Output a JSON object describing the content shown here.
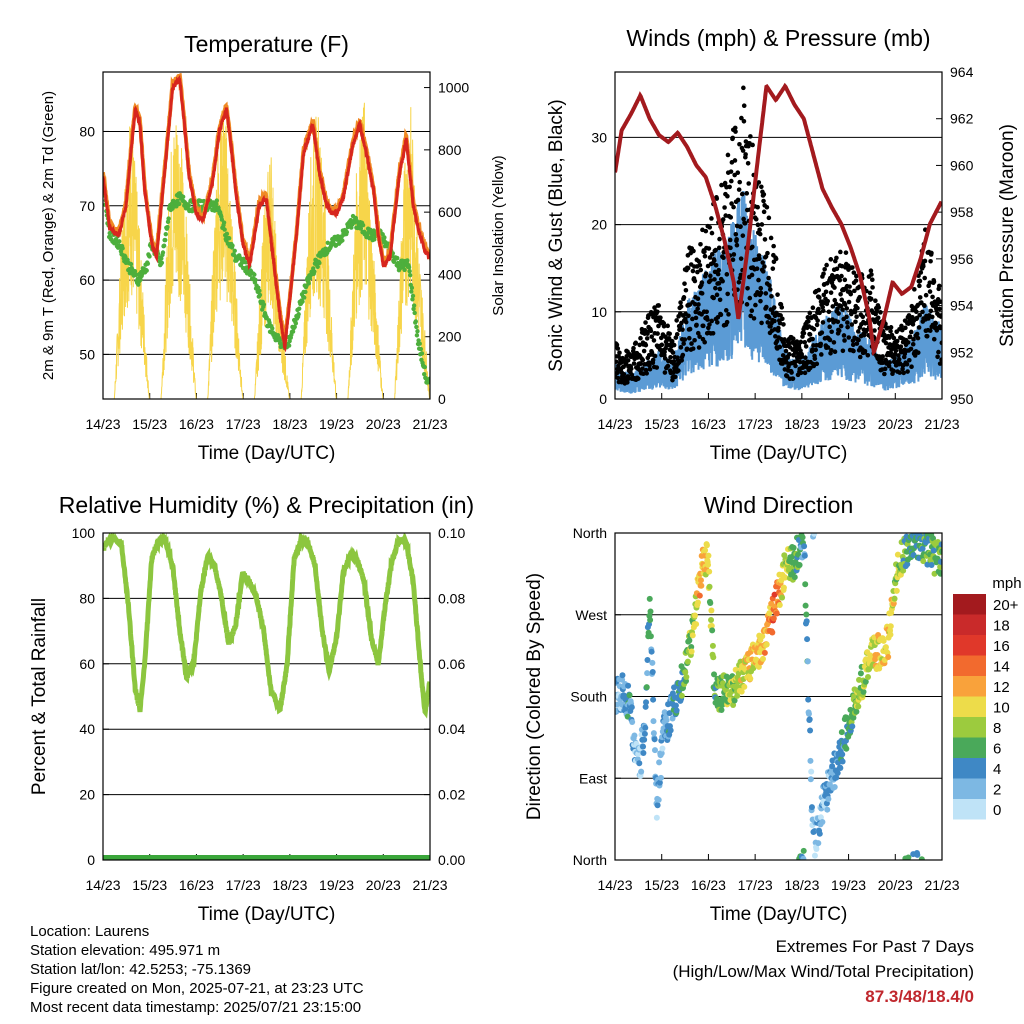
{
  "colors": {
    "temp_red": "#d7261e",
    "temp_orange": "#f08a24",
    "dewpoint_green": "#4daf3c",
    "solar_yellow": "#f7d54a",
    "wind_blue": "#5b9bd5",
    "gust_black": "#000000",
    "pressure_maroon": "#a31a1e",
    "rh_green": "#8cc63f",
    "precip_green": "#3aa63a",
    "extremes_red": "#c0272d"
  },
  "x_ticks": [
    "14/23",
    "15/23",
    "16/23",
    "17/23",
    "18/23",
    "19/23",
    "20/23",
    "21/23"
  ],
  "x_label": "Time (Day/UTC)",
  "panels": {
    "temperature": {
      "title": "Temperature (F)",
      "ylabel_left": "2m & 9m T (Red, Orange) & 2m Td (Green)",
      "ylabel_right": "Solar Insolation (Yellow)",
      "left_ticks": [
        "50",
        "60",
        "70",
        "80"
      ],
      "right_ticks": [
        "0",
        "200",
        "400",
        "600",
        "800",
        "1000"
      ]
    },
    "winds": {
      "title": "Winds (mph) & Pressure (mb)",
      "ylabel_left": "Sonic Wind & Gust (Blue, Black)",
      "ylabel_right": "Station Pressure (Maroon)",
      "left_ticks": [
        "0",
        "10",
        "20",
        "30"
      ],
      "right_ticks": [
        "950",
        "952",
        "954",
        "956",
        "958",
        "960",
        "962",
        "964"
      ]
    },
    "humidity": {
      "title": "Relative Humidity (%) & Precipitation (in)",
      "ylabel_left": "Percent & Total Rainfall",
      "left_ticks": [
        "0",
        "20",
        "40",
        "60",
        "80",
        "100"
      ],
      "right_ticks": [
        "0.00",
        "0.02",
        "0.04",
        "0.06",
        "0.08",
        "0.10"
      ]
    },
    "direction": {
      "title": "Wind Direction",
      "ylabel_left": "Direction (Colored By Speed)",
      "left_ticks": [
        "North",
        "East",
        "South",
        "West",
        "North"
      ],
      "legend_title": "mph",
      "legend_labels": [
        "20+",
        "18",
        "16",
        "14",
        "12",
        "10",
        "8",
        "6",
        "4",
        "2",
        "0"
      ],
      "legend_colors": [
        "#a31a1e",
        "#c92a2a",
        "#e0382a",
        "#f26a2e",
        "#f9a23b",
        "#eddc4a",
        "#9ccb3e",
        "#4aa95a",
        "#3f88c5",
        "#7db8e3",
        "#bfe3f7"
      ]
    }
  },
  "chart_data": [
    {
      "type": "line",
      "title": "Temperature (F)",
      "xlabel": "Time (Day/UTC)",
      "ylabel": "2m & 9m T (Red, Orange) & 2m Td (Green)",
      "ylabel_right": "Solar Insolation (Yellow)",
      "ylim": [
        44,
        88
      ],
      "ylim_right": [
        0,
        1050
      ],
      "x_range_days": [
        14.958,
        21.958
      ],
      "series": [
        {
          "name": "2m & 9m T",
          "color": "#d7261e",
          "x": [
            14.96,
            15.1,
            15.3,
            15.45,
            15.6,
            15.65,
            15.75,
            15.85,
            16.0,
            16.1,
            16.3,
            16.45,
            16.6,
            16.7,
            16.8,
            16.95,
            17.1,
            17.3,
            17.45,
            17.6,
            17.7,
            17.8,
            17.95,
            18.1,
            18.3,
            18.45,
            18.6,
            18.75,
            18.85,
            18.95,
            19.1,
            19.25,
            19.45,
            19.6,
            19.75,
            19.85,
            19.96,
            20.1,
            20.3,
            20.45,
            20.6,
            20.75,
            20.85,
            20.96,
            21.1,
            21.3,
            21.45,
            21.6,
            21.7,
            21.85,
            21.96
          ],
          "y": [
            74,
            67,
            66,
            70,
            80,
            83,
            81,
            72,
            65,
            63,
            76,
            86,
            87,
            81,
            74,
            69,
            68,
            73,
            80,
            83,
            78,
            72,
            65,
            62,
            70,
            71,
            63,
            55,
            51,
            57,
            66,
            77,
            81,
            74,
            70,
            69,
            69,
            71,
            78,
            81,
            77,
            72,
            66,
            62,
            63,
            74,
            79,
            70,
            67,
            64,
            63
          ]
        },
        {
          "name": "2m Td",
          "color": "#4daf3c",
          "x": [
            14.96,
            15.1,
            15.3,
            15.5,
            15.7,
            15.9,
            16.0,
            16.2,
            16.4,
            16.6,
            16.8,
            17.0,
            17.2,
            17.4,
            17.6,
            17.8,
            18.0,
            18.2,
            18.5,
            18.7,
            18.9,
            19.1,
            19.3,
            19.5,
            19.7,
            19.9,
            20.1,
            20.3,
            20.5,
            20.7,
            20.9,
            21.1,
            21.3,
            21.5,
            21.7,
            21.9
          ],
          "y": [
            73,
            66,
            65,
            62,
            60,
            62,
            65,
            62,
            70,
            71,
            70,
            70,
            70,
            70,
            66,
            63,
            62,
            60,
            54,
            52,
            51,
            55,
            59,
            62,
            64,
            65,
            66,
            68,
            67,
            66,
            66,
            64,
            62,
            62,
            52,
            46
          ]
        },
        {
          "name": "Solar Insolation",
          "color": "#f7d54a",
          "axis": "right",
          "x": [
            14.96,
            15.2,
            15.4,
            15.55,
            15.7,
            15.95,
            16.2,
            16.4,
            16.55,
            16.7,
            16.95,
            17.2,
            17.4,
            17.55,
            17.7,
            17.95,
            18.2,
            18.4,
            18.55,
            18.7,
            18.95,
            19.2,
            19.4,
            19.55,
            19.7,
            19.95,
            20.2,
            20.4,
            20.55,
            20.7,
            20.95,
            21.2,
            21.4,
            21.55,
            21.7,
            21.95
          ],
          "y": [
            0,
            0,
            700,
            950,
            650,
            0,
            0,
            800,
            1000,
            700,
            0,
            0,
            820,
            1000,
            650,
            0,
            0,
            600,
            850,
            400,
            0,
            0,
            780,
            950,
            700,
            0,
            0,
            800,
            980,
            600,
            0,
            0,
            750,
            950,
            550,
            0
          ]
        }
      ]
    },
    {
      "type": "line",
      "title": "Winds (mph) & Pressure (mb)",
      "xlabel": "Time (Day/UTC)",
      "ylabel": "Sonic Wind & Gust (Blue, Black)",
      "ylabel_right": "Station Pressure (Maroon)",
      "ylim": [
        0,
        37.5
      ],
      "ylim_right": [
        950,
        964
      ],
      "x_range_days": [
        14.958,
        21.958
      ],
      "series": [
        {
          "name": "Sonic Wind",
          "color": "#5b9bd5",
          "x": [
            14.96,
            15.3,
            15.6,
            15.9,
            16.2,
            16.5,
            16.8,
            17.1,
            17.4,
            17.7,
            18.0,
            18.3,
            18.6,
            18.9,
            19.2,
            19.5,
            19.8,
            20.1,
            20.4,
            20.7,
            21.0,
            21.3,
            21.6,
            21.96
          ],
          "y": [
            3,
            2,
            3,
            4,
            3,
            8,
            10,
            12,
            14,
            18,
            13,
            10,
            4,
            3,
            5,
            7,
            8,
            6,
            5,
            3,
            4,
            5,
            8,
            6
          ]
        },
        {
          "name": "Gust",
          "color": "#000000",
          "x": [
            14.96,
            15.3,
            15.6,
            15.9,
            16.2,
            16.5,
            16.8,
            17.1,
            17.4,
            17.7,
            18.0,
            18.3,
            18.6,
            18.9,
            19.2,
            19.5,
            19.8,
            20.1,
            20.4,
            20.7,
            21.0,
            21.3,
            21.6,
            21.96
          ],
          "y": [
            5,
            4,
            7,
            9,
            5,
            13,
            15,
            18,
            22,
            28,
            20,
            16,
            6,
            5,
            9,
            12,
            14,
            11,
            12,
            7,
            6,
            8,
            16,
            9
          ]
        },
        {
          "name": "Station Pressure",
          "color": "#a31a1e",
          "axis": "right",
          "x": [
            14.96,
            15.1,
            15.3,
            15.5,
            15.7,
            15.9,
            16.1,
            16.3,
            16.5,
            16.7,
            16.9,
            17.1,
            17.3,
            17.5,
            17.6,
            17.8,
            18.0,
            18.2,
            18.4,
            18.6,
            18.8,
            19.0,
            19.2,
            19.4,
            19.6,
            19.8,
            20.0,
            20.2,
            20.4,
            20.5,
            20.7,
            20.9,
            21.1,
            21.3,
            21.5,
            21.7,
            21.96
          ],
          "y": [
            959.7,
            961.5,
            962.2,
            963,
            962,
            961.3,
            961,
            961.4,
            960.8,
            960,
            959.5,
            958.3,
            956.8,
            955,
            953.4,
            956.5,
            960,
            963.4,
            962.8,
            963.4,
            962.6,
            962,
            960.5,
            959,
            958.2,
            957.5,
            956.5,
            955.3,
            953.5,
            952,
            953.3,
            955,
            954.5,
            954.8,
            956,
            957.5,
            958.5
          ]
        }
      ]
    },
    {
      "type": "line",
      "title": "Relative Humidity (%) & Precipitation (in)",
      "xlabel": "Time (Day/UTC)",
      "ylabel": "Percent & Total Rainfall",
      "ylim": [
        0,
        100
      ],
      "ylim_right": [
        0,
        0.1
      ],
      "x_range_days": [
        14.958,
        21.958
      ],
      "series": [
        {
          "name": "Relative Humidity",
          "color": "#8cc63f",
          "x": [
            14.96,
            15.05,
            15.2,
            15.35,
            15.5,
            15.65,
            15.75,
            15.85,
            16.0,
            16.15,
            16.3,
            16.45,
            16.6,
            16.75,
            16.9,
            17.05,
            17.2,
            17.35,
            17.5,
            17.65,
            17.8,
            17.95,
            18.1,
            18.25,
            18.4,
            18.55,
            18.75,
            18.9,
            19.05,
            19.2,
            19.35,
            19.5,
            19.65,
            19.8,
            19.96,
            20.1,
            20.25,
            20.4,
            20.55,
            20.7,
            20.85,
            21.0,
            21.15,
            21.3,
            21.45,
            21.6,
            21.75,
            21.85,
            21.96
          ],
          "y": [
            95,
            97,
            98,
            97,
            78,
            52,
            46,
            60,
            92,
            98,
            97,
            90,
            70,
            56,
            60,
            82,
            93,
            90,
            80,
            66,
            72,
            88,
            85,
            80,
            70,
            52,
            46,
            60,
            92,
            98,
            97,
            90,
            70,
            58,
            68,
            88,
            93,
            92,
            85,
            68,
            60,
            78,
            92,
            98,
            97,
            85,
            60,
            45,
            55
          ]
        },
        {
          "name": "Total Precipitation",
          "color": "#3aa63a",
          "axis": "right",
          "x": [
            14.96,
            21.96
          ],
          "y": [
            0.0,
            0.0
          ]
        }
      ]
    },
    {
      "type": "scatter",
      "title": "Wind Direction",
      "xlabel": "Time (Day/UTC)",
      "ylabel": "Direction (Colored By Speed)",
      "y_categories": [
        "North",
        "East",
        "South",
        "West",
        "North"
      ],
      "ylim": [
        0,
        360
      ],
      "x_range_days": [
        14.958,
        21.958
      ],
      "series": [
        {
          "name": "Wind Direction",
          "x": [
            14.96,
            15.1,
            15.25,
            15.4,
            15.5,
            15.6,
            15.7,
            15.85,
            16.0,
            16.2,
            16.4,
            16.6,
            16.8,
            16.95,
            17.1,
            17.3,
            17.5,
            17.6,
            17.8,
            18.0,
            18.2,
            18.4,
            18.6,
            18.8,
            19.0,
            19.2,
            19.4,
            19.6,
            19.8,
            20.0,
            20.2,
            20.4,
            20.6,
            20.8,
            21.0,
            21.2,
            21.4,
            21.6,
            21.8,
            21.96
          ],
          "y": [
            180,
            185,
            175,
            120,
            110,
            150,
            290,
            60,
            140,
            170,
            200,
            240,
            320,
            330,
            180,
            185,
            190,
            200,
            210,
            225,
            250,
            280,
            320,
            330,
            355,
            10,
            60,
            90,
            120,
            160,
            190,
            220,
            230,
            240,
            320,
            345,
            350,
            345,
            335,
            330
          ],
          "speed": [
            3,
            2,
            4,
            1,
            2,
            3,
            5,
            2,
            3,
            4,
            6,
            8,
            12,
            9,
            6,
            7,
            8,
            9,
            10,
            11,
            12,
            14,
            9,
            6,
            4,
            2,
            2,
            3,
            4,
            6,
            8,
            9,
            10,
            11,
            8,
            6,
            5,
            6,
            7,
            6
          ]
        }
      ],
      "legend": {
        "title": "mph",
        "labels": [
          "20+",
          "18",
          "16",
          "14",
          "12",
          "10",
          "8",
          "6",
          "4",
          "2",
          "0"
        ]
      }
    }
  ],
  "info": {
    "location": "Location: Laurens",
    "elevation": "Station elevation: 495.971 m",
    "latlon": "Station lat/lon: 42.5253; -75.1369",
    "created": "Figure created on Mon, 2025-07-21, at 23:23 UTC",
    "recent": "Most recent data timestamp: 2025/07/21 23:15:00"
  },
  "extremes": {
    "title": "Extremes For Past 7 Days",
    "subtitle": "(High/Low/Max Wind/Total Precipitation)",
    "values": "87.3/48/18.4/0"
  }
}
